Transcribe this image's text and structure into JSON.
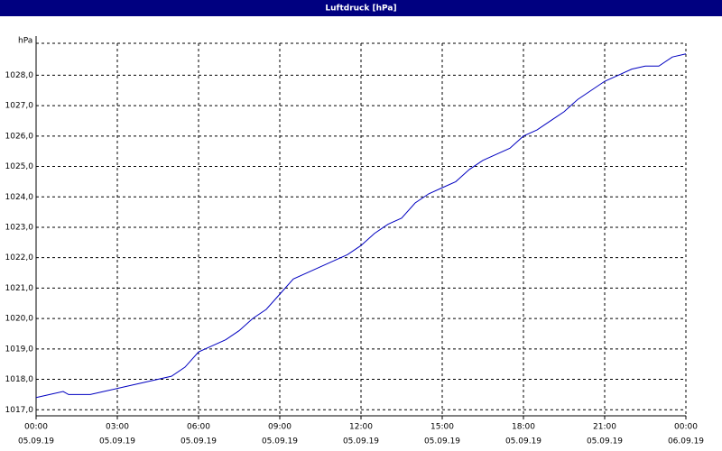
{
  "chart_data": {
    "type": "line",
    "title": "Luftdruck [hPa]",
    "y_label": "hPa",
    "x": [
      0,
      0.5,
      1,
      1.2,
      2,
      2.5,
      3,
      3.5,
      4,
      4.5,
      5,
      5.5,
      6,
      6.5,
      7,
      7.5,
      8,
      8.5,
      9,
      9.5,
      10,
      10.5,
      11,
      11.5,
      12,
      12.5,
      13,
      13.5,
      14,
      14.5,
      15,
      15.5,
      16,
      16.5,
      17,
      17.5,
      18,
      18.5,
      19,
      19.5,
      20,
      20.5,
      21,
      21.5,
      22,
      22.5,
      23,
      23.5,
      24
    ],
    "series": [
      {
        "name": "Luftdruck",
        "color": "#0000c0",
        "values": [
          1017.4,
          1017.5,
          1017.6,
          1017.5,
          1017.5,
          1017.6,
          1017.7,
          1017.8,
          1017.9,
          1018.0,
          1018.1,
          1018.4,
          1018.9,
          1019.1,
          1019.3,
          1019.6,
          1020.0,
          1020.3,
          1020.8,
          1021.3,
          1021.5,
          1021.7,
          1021.9,
          1022.1,
          1022.4,
          1022.8,
          1023.1,
          1023.3,
          1023.8,
          1024.1,
          1024.3,
          1024.5,
          1024.9,
          1025.2,
          1025.4,
          1025.6,
          1026.0,
          1026.2,
          1026.5,
          1026.8,
          1027.2,
          1027.5,
          1027.8,
          1028.0,
          1028.2,
          1028.3,
          1028.3,
          1028.6,
          1028.7
        ]
      }
    ],
    "xlim": [
      0,
      24
    ],
    "xticks": [
      {
        "value": 0,
        "label": "00:00",
        "date": "05.09.19"
      },
      {
        "value": 3,
        "label": "03:00",
        "date": "05.09.19"
      },
      {
        "value": 6,
        "label": "06:00",
        "date": "05.09.19"
      },
      {
        "value": 9,
        "label": "09:00",
        "date": "05.09.19"
      },
      {
        "value": 12,
        "label": "12:00",
        "date": "05.09.19"
      },
      {
        "value": 15,
        "label": "15:00",
        "date": "05.09.19"
      },
      {
        "value": 18,
        "label": "18:00",
        "date": "05.09.19"
      },
      {
        "value": 21,
        "label": "21:00",
        "date": "05.09.19"
      },
      {
        "value": 24,
        "label": "00:00",
        "date": "06.09.19"
      }
    ],
    "ylim": [
      1016.8,
      1029.05
    ],
    "yticks": [
      {
        "value": 1017,
        "label": "1017,0"
      },
      {
        "value": 1018,
        "label": "1018,0"
      },
      {
        "value": 1019,
        "label": "1019,0"
      },
      {
        "value": 1020,
        "label": "1020,0"
      },
      {
        "value": 1021,
        "label": "1021,0"
      },
      {
        "value": 1022,
        "label": "1022,0"
      },
      {
        "value": 1023,
        "label": "1023,0"
      },
      {
        "value": 1024,
        "label": "1024,0"
      },
      {
        "value": 1025,
        "label": "1025,0"
      },
      {
        "value": 1026,
        "label": "1026,0"
      },
      {
        "value": 1027,
        "label": "1027,0"
      },
      {
        "value": 1028,
        "label": "1028,0"
      }
    ],
    "grid": true
  }
}
